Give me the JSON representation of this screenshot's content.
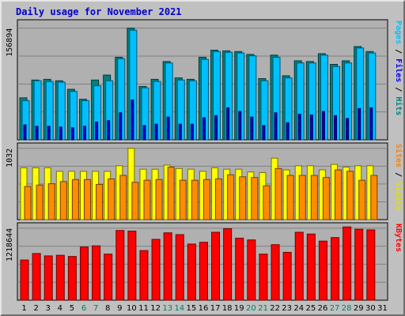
{
  "chart_data": {
    "type": "bar",
    "title": "Daily usage for November 2021",
    "x": [
      "1",
      "2",
      "3",
      "4",
      "5",
      "6",
      "7",
      "8",
      "9",
      "10",
      "11",
      "12",
      "13",
      "14",
      "15",
      "16",
      "17",
      "18",
      "19",
      "20",
      "21",
      "22",
      "23",
      "24",
      "25",
      "26",
      "27",
      "28",
      "29",
      "30",
      "31"
    ],
    "weekend_days": [
      "6",
      "7",
      "13",
      "14",
      "20",
      "21",
      "27",
      "28"
    ],
    "panels": [
      {
        "id": "hits-files-pages",
        "max_label": "156894",
        "ymax": 156894,
        "right_label_parts": [
          {
            "text": "Pages",
            "color": "#00c0ff"
          },
          {
            "text": " / ",
            "color": "#000000"
          },
          {
            "text": "Files",
            "color": "#0000ff"
          },
          {
            "text": " / ",
            "color": "#000000"
          },
          {
            "text": "Hits",
            "color": "#008080"
          }
        ],
        "series": [
          {
            "name": "Hits",
            "color": "#008080",
            "values": [
              59000,
              84000,
              85000,
              83000,
              71000,
              57000,
              84000,
              91000,
              116000,
              156894,
              75000,
              85000,
              110000,
              87000,
              85000,
              116000,
              126000,
              125000,
              124000,
              120000,
              86000,
              119000,
              90000,
              111000,
              110000,
              121000,
              106000,
              111000,
              131000,
              124000
            ]
          },
          {
            "name": "Files",
            "color": "#00bfff",
            "values": [
              55000,
              83000,
              82000,
              81000,
              68000,
              55000,
              76000,
              83000,
              114000,
              154000,
              73000,
              82000,
              108000,
              84000,
              83000,
              113000,
              124000,
              123000,
              122000,
              118000,
              83000,
              116000,
              87000,
              108000,
              108000,
              119000,
              103000,
              108000,
              129000,
              122000
            ]
          },
          {
            "name": "Pages",
            "color": "#0000cc",
            "values": [
              21000,
              19000,
              19000,
              18000,
              17000,
              19000,
              25000,
              27000,
              38000,
              56000,
              20000,
              22000,
              32000,
              22000,
              22000,
              31000,
              34000,
              45000,
              40000,
              32000,
              20000,
              38000,
              24000,
              36000,
              35000,
              40000,
              34000,
              30000,
              44000,
              45000
            ]
          }
        ]
      },
      {
        "id": "visits-sites",
        "max_label": "1032",
        "ymax": 1032,
        "right_label_parts": [
          {
            "text": "Sites",
            "color": "#ff8000"
          },
          {
            "text": " / ",
            "color": "#000000"
          },
          {
            "text": "Visits",
            "color": "#e0e000"
          }
        ],
        "series": [
          {
            "name": "Visits",
            "color": "#ffff00",
            "values": [
              750,
              750,
              750,
              700,
              700,
              700,
              700,
              700,
              780,
              1032,
              730,
              730,
              790,
              740,
              730,
              700,
              750,
              730,
              730,
              690,
              680,
              890,
              720,
              780,
              780,
              720,
              800,
              760,
              780,
              780
            ]
          },
          {
            "name": "Sites",
            "color": "#ff8c00",
            "values": [
              480,
              500,
              520,
              550,
              580,
              580,
              510,
              590,
              640,
              540,
              570,
              580,
              760,
              570,
              570,
              580,
              590,
              650,
              620,
              610,
              490,
              740,
              640,
              640,
              640,
              610,
              720,
              700,
              570,
              640
            ]
          }
        ]
      },
      {
        "id": "kbytes",
        "max_label": "1218644",
        "ymax": 1218644,
        "right_label_parts": [
          {
            "text": "KBytes",
            "color": "#ff0000"
          }
        ],
        "series": [
          {
            "name": "KBytes",
            "color": "#ff0000",
            "values": [
              680000,
              790000,
              750000,
              760000,
              740000,
              900000,
              920000,
              780000,
              1180000,
              1170000,
              840000,
              1030000,
              1140000,
              1110000,
              950000,
              980000,
              1150000,
              1210000,
              1050000,
              1020000,
              780000,
              940000,
              810000,
              1150000,
              1120000,
              1000000,
              1060000,
              1240000,
              1200000,
              1190000
            ]
          }
        ]
      }
    ]
  }
}
